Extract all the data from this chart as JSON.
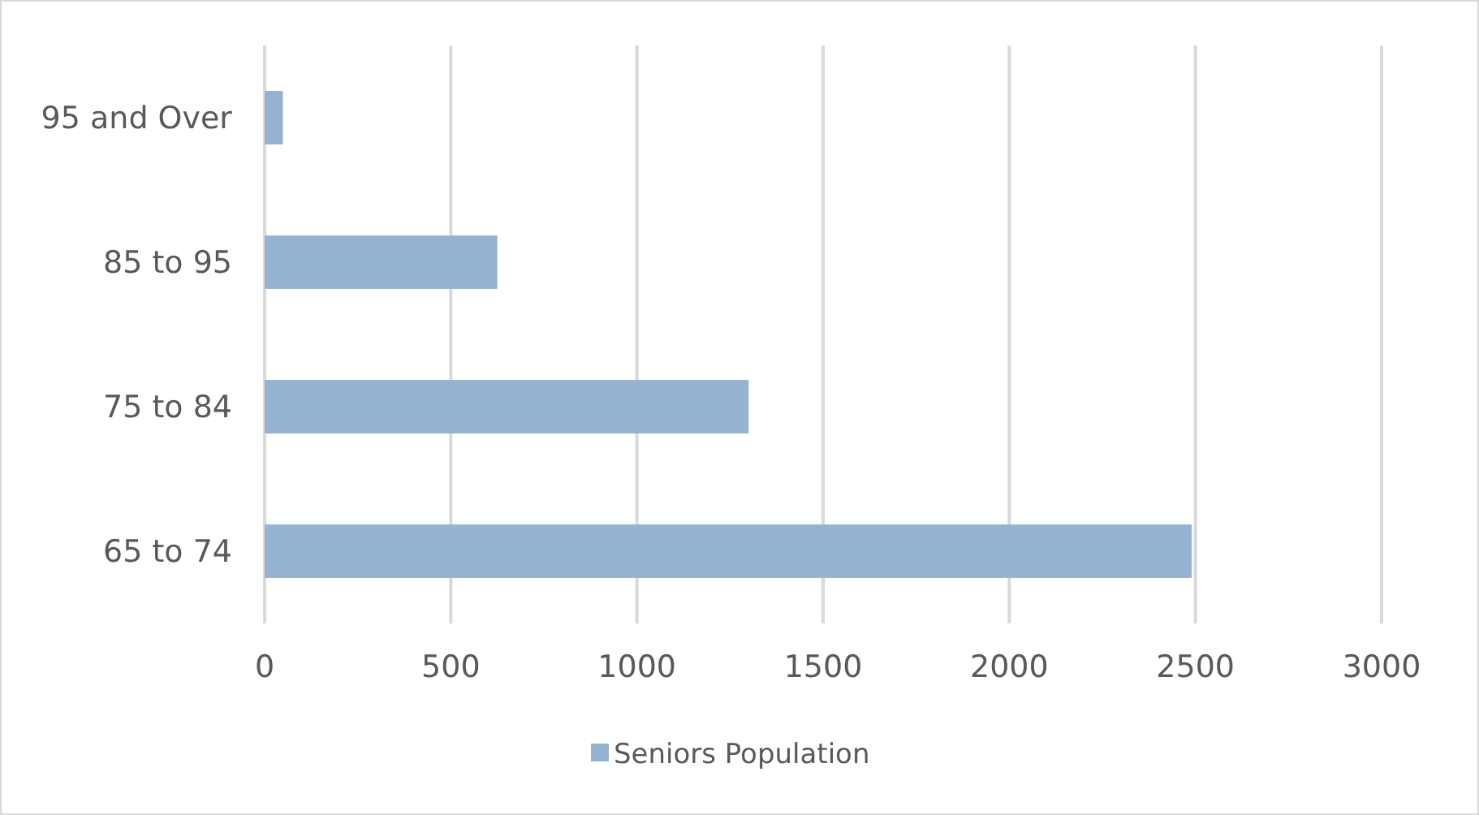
{
  "chart_data": {
    "type": "bar",
    "orientation": "horizontal",
    "categories": [
      "95 and Over",
      "85 to 95",
      "75 to 84",
      "65 to 74"
    ],
    "series": [
      {
        "name": "Seniors Population",
        "color": "#95b3d1",
        "values": [
          49,
          625,
          1300,
          2490
        ]
      }
    ],
    "xlim": [
      0,
      3000
    ],
    "xticks": [
      0,
      500,
      1000,
      1500,
      2000,
      2500,
      3000
    ],
    "grid": "x",
    "legend": "bottom"
  }
}
